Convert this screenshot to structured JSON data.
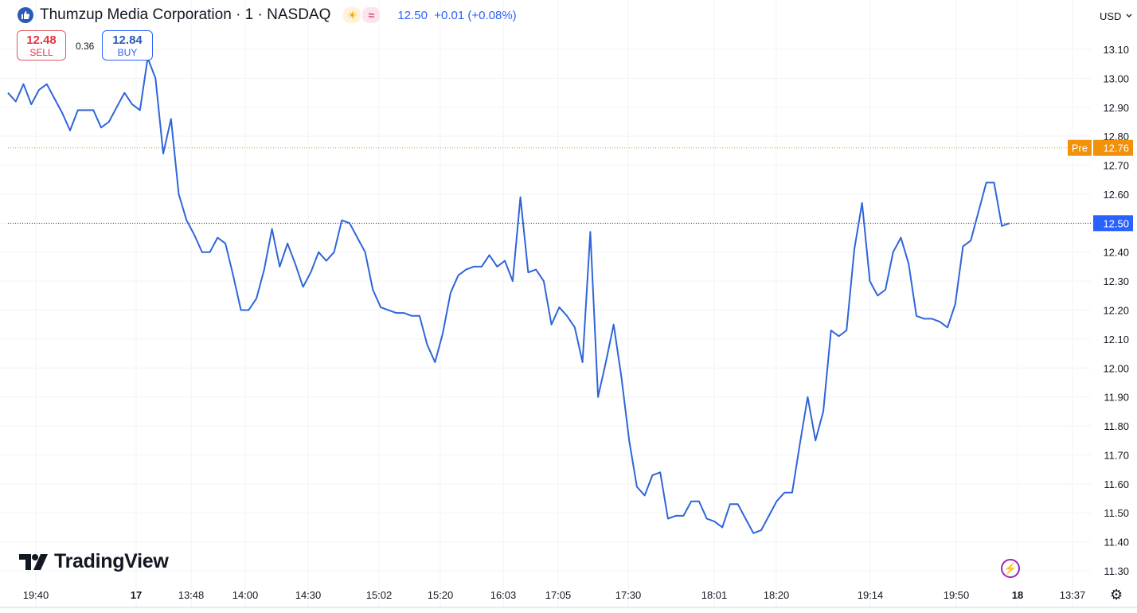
{
  "header": {
    "title": "Thumzup Media Corporation · 1 · NASDAQ",
    "last_price": "12.50",
    "change": "+0.01 (+0.08%)"
  },
  "trade": {
    "sell_price": "12.48",
    "sell_label": "SELL",
    "spread": "0.36",
    "buy_price": "12.84",
    "buy_label": "BUY"
  },
  "currency": "USD",
  "branding": "TradingView",
  "chart_data": {
    "type": "line",
    "ylim": [
      11.25,
      13.16
    ],
    "y_ticks": [
      13.1,
      13.0,
      12.9,
      12.8,
      12.7,
      12.6,
      12.5,
      12.4,
      12.3,
      12.2,
      12.1,
      12.0,
      11.9,
      11.8,
      11.7,
      11.6,
      11.5,
      11.4,
      11.3
    ],
    "x_tick_labels": [
      "19:40",
      "17",
      "13:48",
      "14:00",
      "14:30",
      "15:02",
      "15:20",
      "16:03",
      "17:05",
      "17:30",
      "18:01",
      "18:20",
      "19:14",
      "19:50",
      "18",
      "13:37"
    ],
    "pre_market_label": "Pre",
    "pre_market_price": 12.76,
    "last_price": 12.5,
    "colors": {
      "line": "#2f65d9",
      "pre": "#f2910a",
      "last": "#2962ff"
    },
    "grid": true,
    "series": [
      {
        "values": [
          12.95,
          12.92,
          12.98,
          12.91,
          12.96,
          12.98,
          12.93,
          12.88,
          12.82,
          12.89,
          12.89,
          12.89,
          12.83,
          12.85,
          12.9,
          12.95,
          12.91,
          12.89,
          13.07,
          13.0,
          12.74,
          12.86,
          12.6,
          12.51,
          12.46,
          12.4,
          12.4,
          12.45,
          12.43,
          12.32,
          12.2,
          12.2,
          12.24,
          12.34,
          12.48,
          12.35,
          12.43,
          12.36,
          12.28,
          12.33,
          12.4,
          12.37,
          12.4,
          12.51,
          12.5,
          12.45,
          12.4,
          12.27,
          12.21,
          12.2,
          12.19,
          12.19,
          12.18,
          12.18,
          12.08,
          12.02,
          12.12,
          12.26,
          12.32,
          12.34,
          12.35,
          12.35,
          12.39,
          12.35,
          12.37,
          12.3,
          12.59,
          12.33,
          12.34,
          12.3,
          12.15,
          12.21,
          12.18,
          12.14,
          12.02,
          12.47,
          11.9,
          12.02,
          12.15,
          11.97,
          11.75,
          11.59,
          11.56,
          11.63,
          11.64,
          11.48,
          11.49,
          11.49,
          11.54,
          11.54,
          11.48,
          11.47,
          11.45,
          11.53,
          11.53,
          11.48,
          11.43,
          11.44,
          11.49,
          11.54,
          11.57,
          11.57,
          11.74,
          11.9,
          11.75,
          11.85,
          12.13,
          12.11,
          12.13,
          12.41,
          12.57,
          12.3,
          12.25,
          12.27,
          12.4,
          12.45,
          12.36,
          12.18,
          12.17,
          12.17,
          12.16,
          12.14,
          12.22,
          12.42,
          12.44,
          12.54,
          12.64,
          12.64,
          12.49,
          12.5
        ]
      }
    ]
  }
}
